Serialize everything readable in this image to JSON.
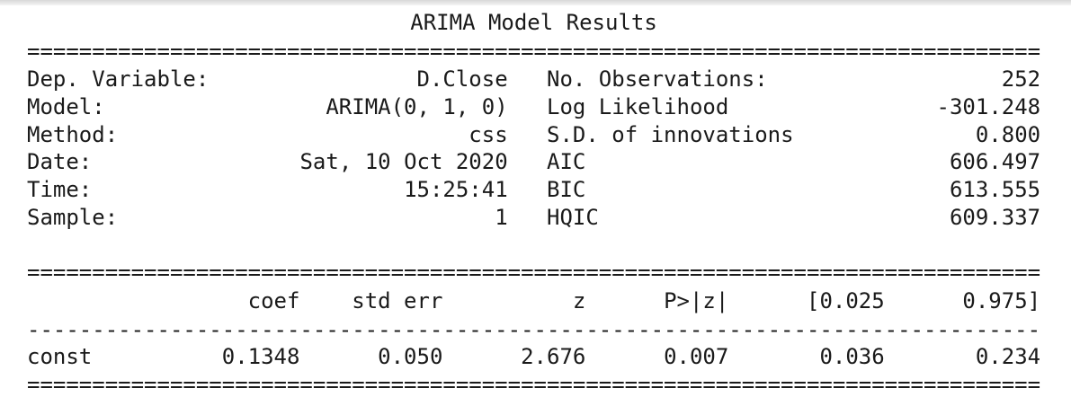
{
  "title": "ARIMA Model Results",
  "separator": "==============================================================================",
  "dash_separator": "------------------------------------------------------------------------------",
  "summary": {
    "rows": [
      [
        "Dep. Variable:",
        "D.Close",
        "No. Observations:",
        "252"
      ],
      [
        "Model:",
        "ARIMA(0, 1, 0)",
        "Log Likelihood",
        "-301.248"
      ],
      [
        "Method:",
        "css",
        "S.D. of innovations",
        "0.800"
      ],
      [
        "Date:",
        "Sat, 10 Oct 2020",
        "AIC",
        "606.497"
      ],
      [
        "Time:",
        "15:25:41",
        "BIC",
        "613.555"
      ],
      [
        "Sample:",
        "1",
        "HQIC",
        "609.337"
      ]
    ]
  },
  "coefficients": {
    "header": [
      "coef",
      "std err",
      "z",
      "P>|z|",
      "[0.025",
      "0.975]"
    ],
    "rows": [
      [
        "const",
        "0.1348",
        "0.050",
        "2.676",
        "0.007",
        "0.036",
        "0.234"
      ]
    ]
  }
}
